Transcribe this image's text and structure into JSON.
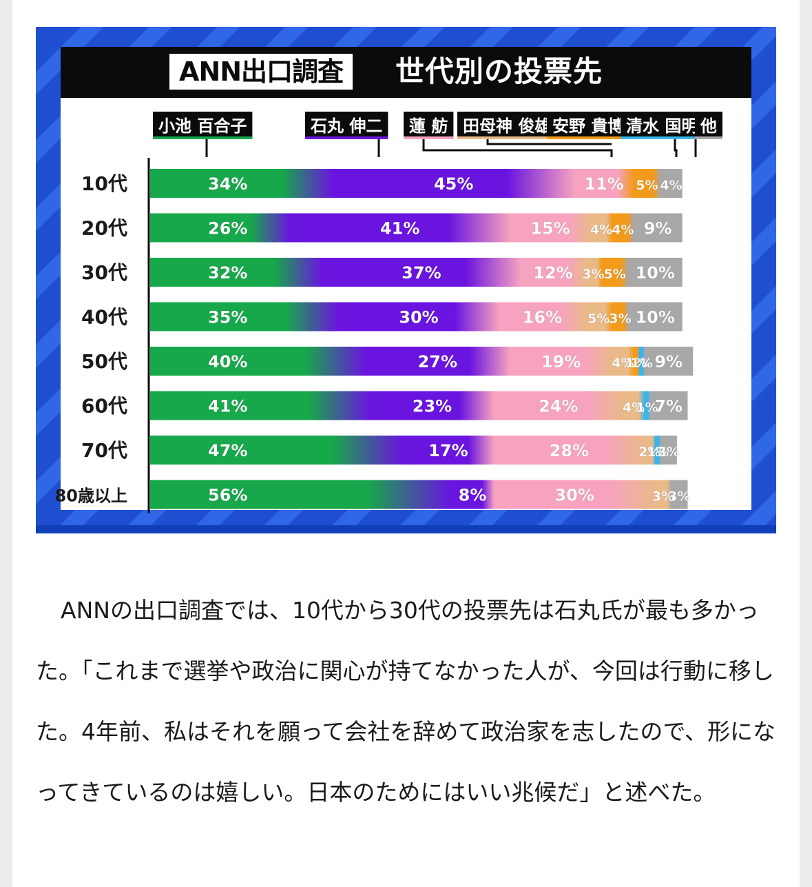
{
  "article": {
    "paragraph": "ANNの出口調査では、10代から30代の投票先は石丸氏が最も多かった。「これまで選挙や政治に関心が持てなかった人が、今回は行動に移した。4年前、私はそれを願って会社を辞めて政治家を志したので、形になってきているのは嬉しい。日本のためにはいい兆候だ」と述べた。"
  },
  "chart_data": {
    "type": "bar",
    "orientation": "horizontal",
    "stacked": true,
    "title_tag": "ANN出口調査",
    "title": "世代別の投票先",
    "categories": [
      "10代",
      "20代",
      "30代",
      "40代",
      "50代",
      "60代",
      "70代",
      "80歳以上"
    ],
    "series": [
      {
        "name": "小池 百合子",
        "color": "#16a84a",
        "values": [
          34,
          26,
          32,
          35,
          40,
          41,
          47,
          56
        ],
        "labels": [
          "34%",
          "26%",
          "32%",
          "35%",
          "40%",
          "41%",
          "47%",
          "56%"
        ]
      },
      {
        "name": "石丸 伸二",
        "color": "#6a14e0",
        "values": [
          45,
          41,
          37,
          30,
          27,
          23,
          17,
          8
        ],
        "labels": [
          "45%",
          "41%",
          "37%",
          "30%",
          "27%",
          "23%",
          "17%",
          "8%"
        ]
      },
      {
        "name": "蓮 舫",
        "color": "#f7a3c0",
        "values": [
          11,
          15,
          12,
          16,
          19,
          24,
          28,
          30
        ],
        "labels": [
          "11%",
          "15%",
          "12%",
          "16%",
          "19%",
          "24%",
          "28%",
          "30%"
        ]
      },
      {
        "name": "田母神 俊雄",
        "color": "#e9b988",
        "values": [
          null,
          4,
          3,
          5,
          4,
          4,
          2,
          3
        ],
        "labels": [
          "",
          "4%",
          "3%",
          "5%",
          "4%",
          "4%",
          "2%",
          "3%"
        ]
      },
      {
        "name": "安野 貴博",
        "color": "#f39a1a",
        "values": [
          5,
          4,
          5,
          3,
          1,
          null,
          null,
          null
        ],
        "labels": [
          "5%",
          "4%",
          "5%",
          "3%",
          "1%",
          "",
          "",
          ""
        ]
      },
      {
        "name": "清水 国明",
        "color": "#3cb4e8",
        "values": [
          null,
          null,
          null,
          null,
          1,
          1,
          1,
          null
        ],
        "labels": [
          "",
          "",
          "",
          "",
          "1%",
          "1%",
          "1%",
          ""
        ]
      },
      {
        "name": "他",
        "color": "#a8a8a8",
        "values": [
          4,
          9,
          10,
          10,
          9,
          7,
          3,
          3
        ],
        "labels": [
          "4%",
          "9%",
          "10%",
          "10%",
          "9%",
          "7%",
          "3%",
          "3%"
        ]
      }
    ],
    "xlim": [
      0,
      100
    ],
    "grid": false,
    "legend": "top"
  }
}
